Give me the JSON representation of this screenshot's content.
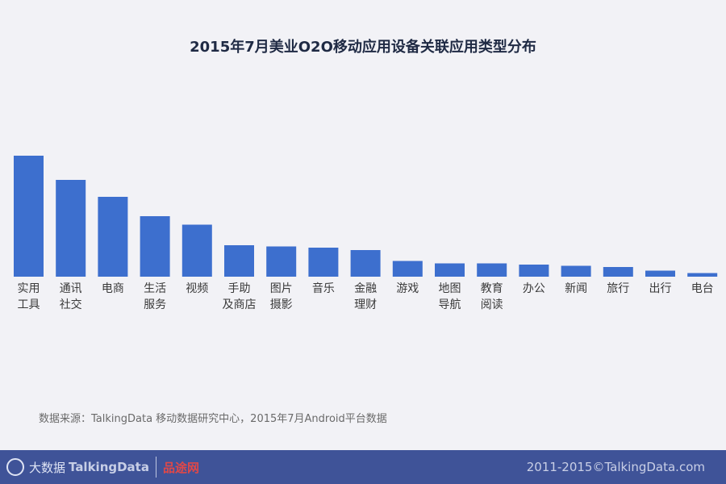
{
  "chart_data": {
    "type": "bar",
    "title": "2015年7月美业O2O移动应用设备关联应用类型分布",
    "categories": [
      [
        "实用",
        "工具"
      ],
      [
        "通讯",
        "社交"
      ],
      [
        "电商"
      ],
      [
        "生活",
        "服务"
      ],
      [
        "视频"
      ],
      [
        "手助",
        "及商店"
      ],
      [
        "图片",
        "摄影"
      ],
      [
        "音乐"
      ],
      [
        "金融",
        "理财"
      ],
      [
        "游戏"
      ],
      [
        "地图",
        "导航"
      ],
      [
        "教育",
        "阅读"
      ],
      [
        "办公"
      ],
      [
        "新闻"
      ],
      [
        "旅行"
      ],
      [
        "出行"
      ],
      [
        "电台"
      ]
    ],
    "values": [
      100,
      80,
      66,
      50,
      43,
      26,
      25,
      24,
      22,
      13,
      11,
      11,
      10,
      9,
      8,
      5,
      3
    ],
    "ylim": [
      0,
      100
    ],
    "yaxis_visible": false,
    "grid": false,
    "bar_color": "#3d6fce"
  },
  "source_text": "数据来源：TalkingData 移动数据研究中心，2015年7月Android平台数据",
  "footer": {
    "brand": "TalkingData",
    "brand_prefix": "大数据",
    "watermark": "品途网",
    "copyright": "2011-2015©TalkingData.com"
  }
}
